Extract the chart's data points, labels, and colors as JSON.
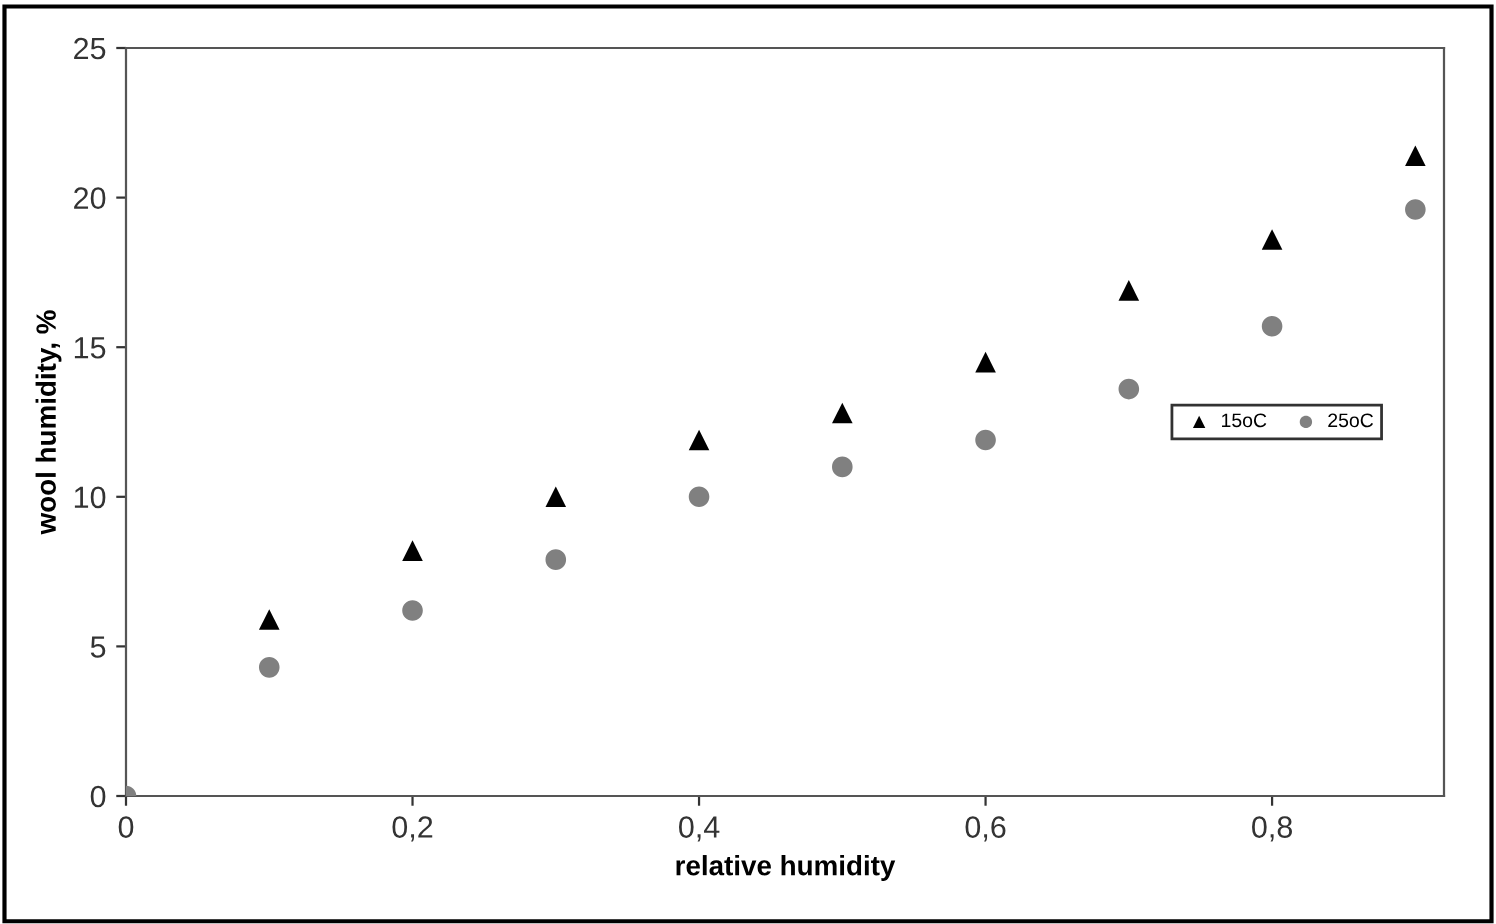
{
  "chart_data": {
    "type": "scatter",
    "xlabel": "relative humidity",
    "ylabel": "wool humidity, %",
    "xlim": [
      0,
      0.92
    ],
    "ylim": [
      0,
      25
    ],
    "xticks": [
      0,
      {
        "value": 0.2,
        "label": "0,2"
      },
      {
        "value": 0.4,
        "label": "0,4"
      },
      {
        "value": 0.6,
        "label": "0,6"
      },
      {
        "value": 0.8,
        "label": "0,8"
      }
    ],
    "yticks": [
      0,
      5,
      10,
      15,
      20,
      25
    ],
    "grid": false,
    "legend": "right",
    "series": [
      {
        "name": "15oC",
        "color": "#000000",
        "marker": "triangle",
        "x": [
          0.1,
          0.2,
          0.3,
          0.4,
          0.5,
          0.6,
          0.7,
          0.8,
          0.9
        ],
        "values": [
          5.9,
          8.2,
          10.0,
          11.9,
          12.8,
          14.5,
          16.9,
          18.6,
          21.4
        ]
      },
      {
        "name": "25oC",
        "color": "#808080",
        "marker": "circle",
        "x": [
          0,
          0.1,
          0.2,
          0.3,
          0.4,
          0.5,
          0.6,
          0.7,
          0.8,
          0.9
        ],
        "values": [
          0,
          4.3,
          6.2,
          7.9,
          10.0,
          11.0,
          11.9,
          13.6,
          15.7,
          19.6
        ]
      }
    ]
  }
}
